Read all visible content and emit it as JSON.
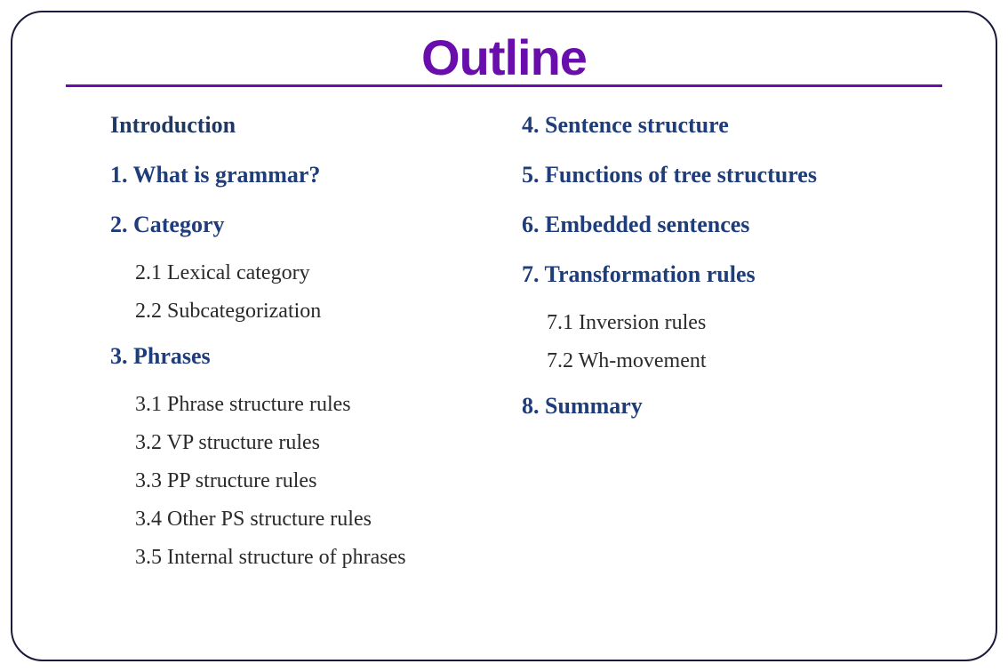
{
  "title": {
    "text": "Outline",
    "color": "#6a0dad",
    "underline_color": "#6a0dad"
  },
  "colors": {
    "heading": "#1f3864",
    "section": "#1f3d7a",
    "sub": "#2a2a2a",
    "border": "#1a1a3a"
  },
  "left": {
    "intro": "Introduction",
    "s1": "1.  What is grammar?",
    "s2": "2.  Category",
    "s2_1": "2.1  Lexical category",
    "s2_2": "2.2  Subcategorization",
    "s3": "3.  Phrases",
    "s3_1": "3.1  Phrase structure rules",
    "s3_2": "3.2   VP structure rules",
    "s3_3": "3.3  PP structure rules",
    "s3_4": "3.4  Other PS structure rules",
    "s3_5": "3.5  Internal structure of phrases"
  },
  "right": {
    "s4": "4.  Sentence structure",
    "s5": "5.  Functions of tree structures",
    "s6": "6.  Embedded sentences",
    "s7": "7.  Transformation rules",
    "s7_1": "7.1  Inversion rules",
    "s7_2": "7.2  Wh-movement",
    "s8": "8.  Summary"
  }
}
